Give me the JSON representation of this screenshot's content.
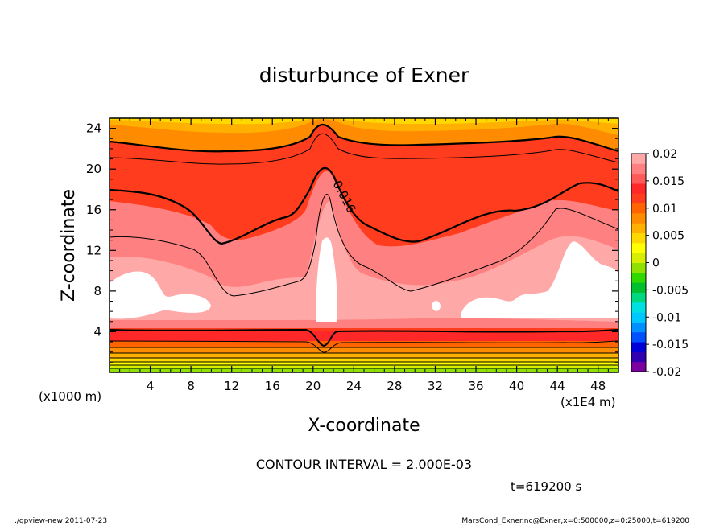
{
  "chart_data": {
    "type": "contour",
    "title": "disturbunce of Exner",
    "xlabel": "X-coordinate",
    "ylabel": "Z-coordinate",
    "x_units_label": "(x1E4 m)",
    "z_units_label": "(x1000 m)",
    "xlim": [
      0,
      50
    ],
    "ylim": [
      0,
      25
    ],
    "x_ticks": [
      4,
      8,
      12,
      16,
      20,
      24,
      28,
      32,
      36,
      40,
      44,
      48
    ],
    "y_ticks": [
      4,
      8,
      12,
      16,
      20,
      24
    ],
    "contour_interval_text": "CONTOUR INTERVAL = 2.000E-03",
    "contour_label": "0.016",
    "time_label": "t=619200 s",
    "colorbar": {
      "min": -0.02,
      "max": 0.02,
      "labels": [
        "0.02",
        "0.015",
        "0.01",
        "0.005",
        "0",
        "-0.005",
        "-0.01",
        "-0.015",
        "-0.02"
      ],
      "colors": [
        "#7a00a0",
        "#3000b0",
        "#0000d8",
        "#0050ff",
        "#0090ff",
        "#00c8ff",
        "#00e0e0",
        "#00d880",
        "#00c030",
        "#30d800",
        "#90e000",
        "#d8ee00",
        "#ffff00",
        "#ffd800",
        "#ffb000",
        "#ff8c00",
        "#ff6400",
        "#ff3c1e",
        "#ff2828",
        "#ff5a5a",
        "#ff8080",
        "#ffa8a8"
      ]
    }
  },
  "footer": {
    "left": "./gpview-new   2011-07-23",
    "right": "MarsCond_Exner.nc@Exner,x=0:500000,z=0:25000,t=619200"
  },
  "colors": {
    "low_band": "#ff6400",
    "mid": "#ff3c1e",
    "strong": "#ff2828",
    "light": "#ff8080",
    "lighter": "#ffa8a8"
  }
}
